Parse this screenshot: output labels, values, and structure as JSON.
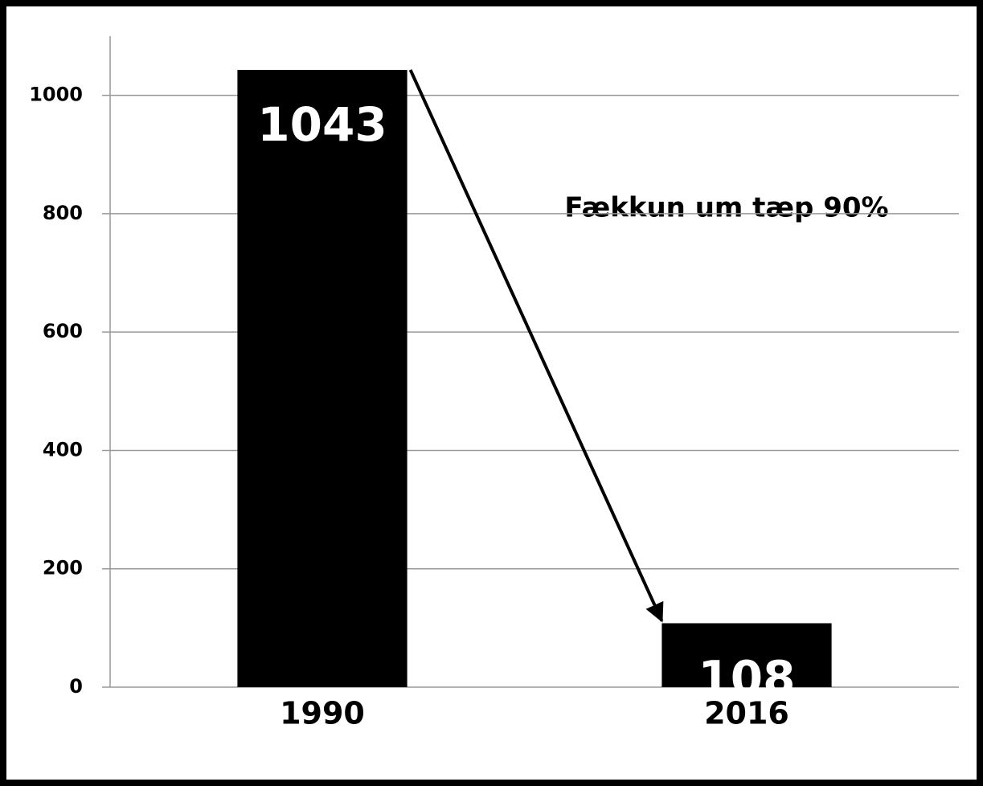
{
  "chart_data": {
    "type": "bar",
    "categories": [
      "1990",
      "2016"
    ],
    "values": [
      1043,
      108
    ],
    "color": "#000000",
    "ylim": [
      0,
      1100
    ],
    "yticks": [
      0,
      200,
      400,
      600,
      800,
      1000
    ],
    "grid": true,
    "annotation": "Fækkun um tæp 90%"
  }
}
